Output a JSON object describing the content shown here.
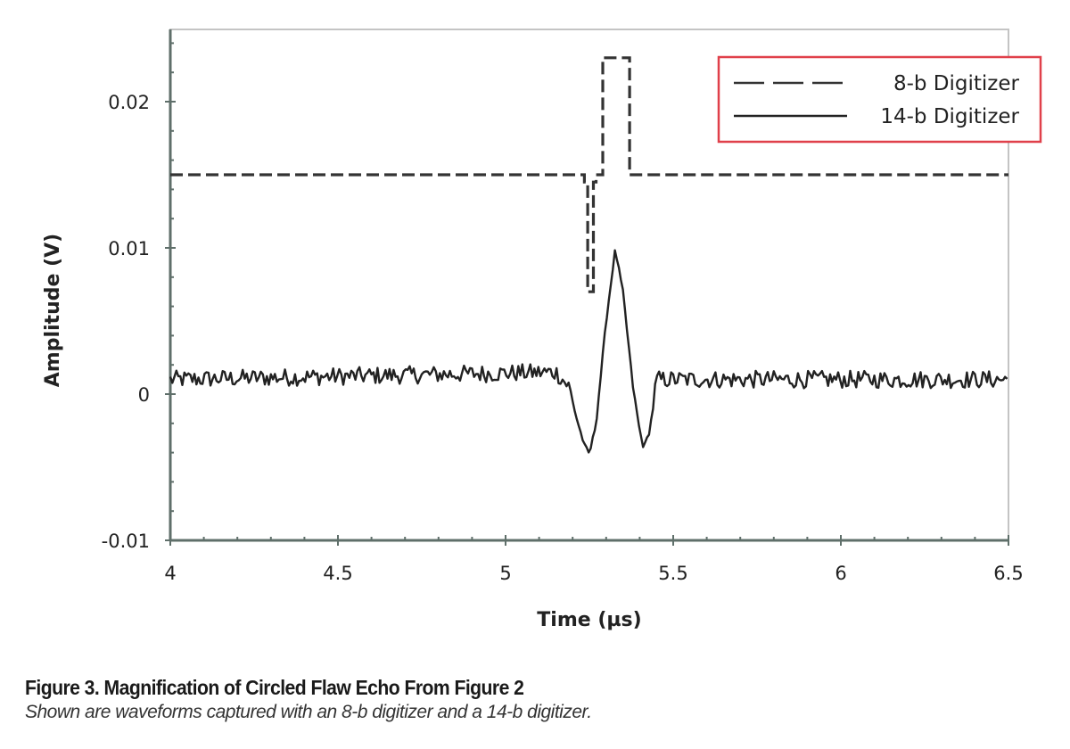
{
  "figure": {
    "caption_title": "Figure 3. Magnification of Circled Flaw Echo From Figure 2",
    "caption_text": "Shown are waveforms captured with an 8-b digitizer and a 14-b digitizer."
  },
  "colors": {
    "axis": "#5f6f6a",
    "line": "#222222",
    "legend_border": "#e0404a",
    "frame": "#bbbbbb"
  },
  "chart_data": {
    "type": "line",
    "title": "",
    "xlabel": "Time (µs)",
    "ylabel": "Amplitude (V)",
    "xlim": [
      4,
      6.5
    ],
    "ylim": [
      -0.01,
      0.025
    ],
    "x_ticks": [
      4,
      4.5,
      5,
      5.5,
      6,
      6.5
    ],
    "x_tick_labels": [
      "4",
      "4.5",
      "5",
      "5.5",
      "6",
      "6.5"
    ],
    "x_minor_step": 0.1,
    "y_ticks": [
      -0.01,
      0,
      0.01,
      0.02
    ],
    "y_tick_labels": [
      "-0.01",
      "0",
      "0.01",
      "0.02"
    ],
    "y_minor_step": 0.002,
    "grid": false,
    "legend_position": "upper right",
    "legend": [
      "8-b Digitizer",
      "14-b Digitizer"
    ],
    "series": [
      {
        "name": "8-b Digitizer",
        "style": "dashed",
        "x": [
          4.0,
          5.235,
          5.235,
          5.245,
          5.245,
          5.262,
          5.262,
          5.27,
          5.27,
          5.29,
          5.29,
          5.37,
          5.37,
          5.385,
          6.5
        ],
        "y": [
          0.015,
          0.015,
          0.0145,
          0.0145,
          0.007,
          0.007,
          0.0145,
          0.0145,
          0.015,
          0.015,
          0.023,
          0.023,
          0.015,
          0.015,
          0.015
        ]
      },
      {
        "name": "14-b Digitizer",
        "style": "solid",
        "noise_baseline": 0.001,
        "noise_amplitude": 0.0006,
        "x": [
          4.0,
          5.15,
          5.19,
          5.21,
          5.235,
          5.25,
          5.27,
          5.3,
          5.327,
          5.35,
          5.38,
          5.4,
          5.412,
          5.43,
          5.45,
          6.5
        ],
        "y": [
          0.001,
          0.0015,
          0.0005,
          -0.0015,
          -0.0035,
          -0.0041,
          -0.002,
          0.005,
          0.0099,
          0.007,
          0.0005,
          -0.0025,
          -0.0037,
          -0.0025,
          0.001,
          0.001
        ]
      }
    ]
  }
}
